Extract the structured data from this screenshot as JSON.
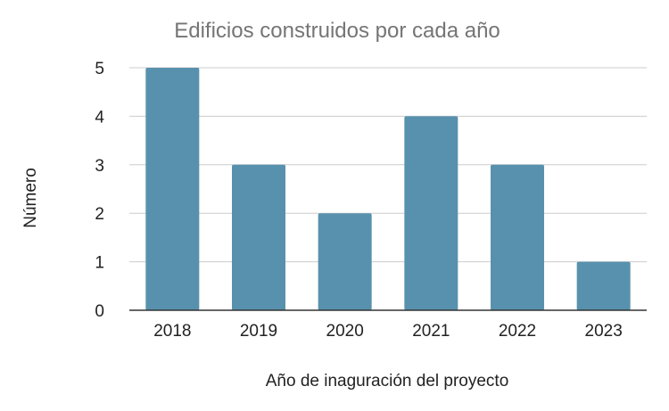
{
  "chart_data": {
    "type": "bar",
    "title": "Edificios construidos por cada año",
    "xlabel": "Año de inaguración del proyecto",
    "ylabel": "Número",
    "categories": [
      "2018",
      "2019",
      "2020",
      "2021",
      "2022",
      "2023"
    ],
    "values": [
      5,
      3,
      2,
      4,
      3,
      1
    ],
    "ylim": [
      0,
      5
    ],
    "yticks": [
      0,
      1,
      2,
      3,
      4,
      5
    ],
    "grid": true,
    "legend": "none",
    "bar_color": "#5891AD",
    "grid_color": "#cccccc",
    "axis_color": "#333333"
  }
}
